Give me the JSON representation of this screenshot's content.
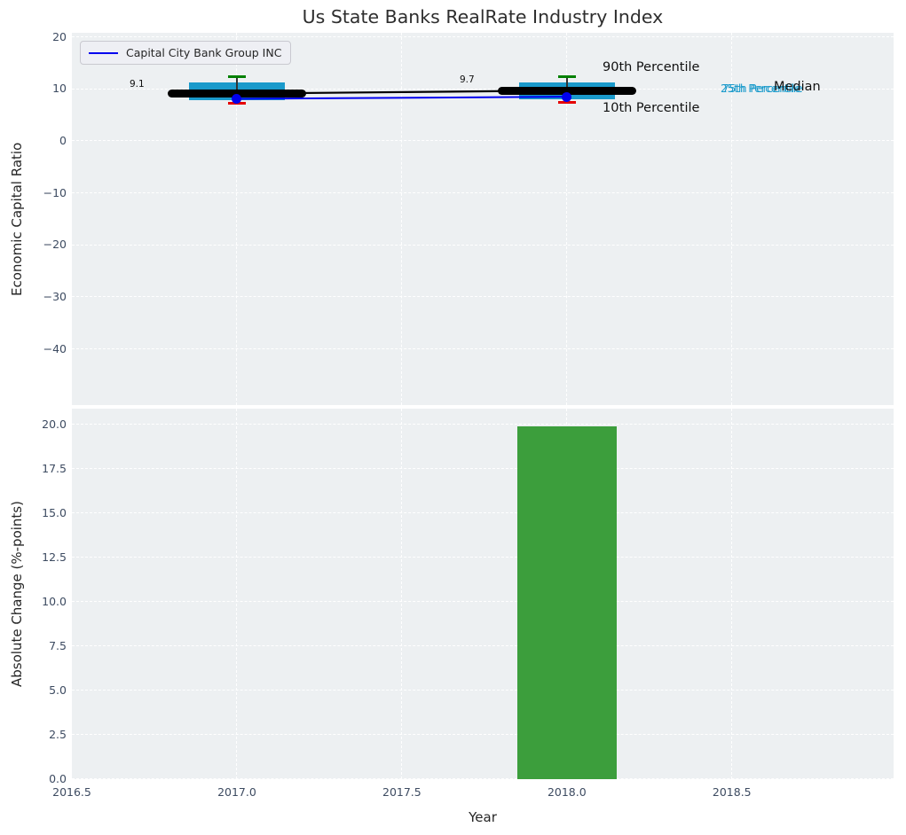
{
  "title": "Us State Banks RealRate Industry Index",
  "colors": {
    "plot_background": "#edf0f2",
    "grid": "#ffffff",
    "tick_text": "#3d4b61",
    "box_cyan": "#1a9acb",
    "cap_green": "#008000",
    "cap_red": "#e50000",
    "company_blue": "#0000ee",
    "median_black": "#000000",
    "bar_green": "#3c9e3c"
  },
  "legend": {
    "label": "Capital City Bank Group INC"
  },
  "annotations": {
    "m2017": "9.1",
    "m2018": "9.7",
    "p90": "90th Percentile",
    "p10": "10th Percentile",
    "p75": "75th Percentile",
    "p25": "25th Percentile",
    "median": "Median"
  },
  "chart_data": [
    {
      "type": "boxplot+line",
      "title": "Us State Banks RealRate Industry Index",
      "xlabel": "Year",
      "ylabel": "Economic Capital Ratio",
      "x": [
        2017,
        2018
      ],
      "series": [
        {
          "name": "Capital City Bank Group INC",
          "type": "line+marker",
          "color": "#0000ee",
          "values": [
            8.1,
            8.5
          ]
        },
        {
          "name": "Median",
          "type": "thick-line",
          "color": "#000000",
          "values": [
            9.1,
            9.7
          ],
          "point_labels": [
            "9.1",
            "9.7"
          ]
        },
        {
          "name": "90th Percentile",
          "type": "whisker-cap",
          "color": "#008000",
          "values": [
            12.4,
            12.4
          ]
        },
        {
          "name": "75th Percentile",
          "type": "box-top",
          "color": "#1a9acb",
          "values": [
            11.2,
            11.2
          ]
        },
        {
          "name": "25th Percentile",
          "type": "box-bottom",
          "color": "#1a9acb",
          "values": [
            7.9,
            8.0
          ]
        },
        {
          "name": "10th Percentile",
          "type": "whisker-cap",
          "color": "#e50000",
          "values": [
            7.3,
            7.5
          ]
        }
      ],
      "ylim": [
        -50.8,
        20.8
      ],
      "yticks": [
        20,
        10,
        0,
        -10,
        -20,
        -30,
        -40
      ],
      "xlim": [
        2016.5,
        2018.99
      ],
      "xticks": [
        2016.5,
        2017.0,
        2017.5,
        2018.0,
        2018.5
      ],
      "grid": "dashed-white",
      "legend_position": "upper-left"
    },
    {
      "type": "bar",
      "xlabel": "Year",
      "ylabel": "Absolute Change (%-points)",
      "x": [
        2018
      ],
      "values": [
        19.9
      ],
      "bar_width": 0.3,
      "color": "#3c9e3c",
      "ylim": [
        0,
        20.9
      ],
      "yticks": [
        20.0,
        17.5,
        15.0,
        12.5,
        10.0,
        7.5,
        5.0,
        2.5,
        0.0
      ],
      "xlim": [
        2016.5,
        2018.99
      ],
      "xticks": [
        2016.5,
        2017.0,
        2017.5,
        2018.0,
        2018.5
      ]
    }
  ]
}
